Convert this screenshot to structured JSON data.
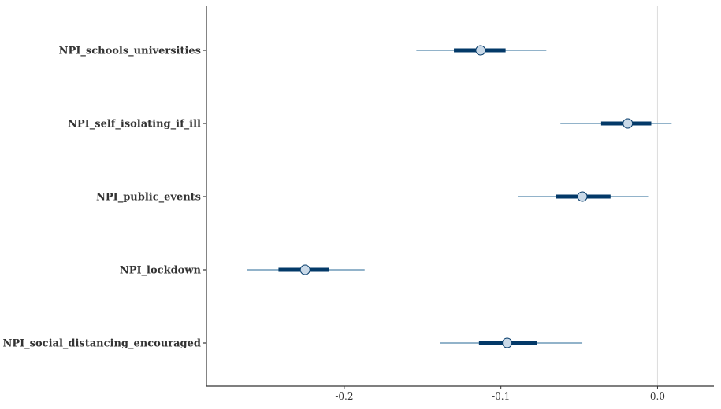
{
  "chart_data": {
    "type": "interval",
    "title": "",
    "xlabel": "",
    "ylabel": "",
    "xlim": [
      -0.288,
      0.036
    ],
    "x_ticks": [
      -0.2,
      -0.1,
      0.0
    ],
    "x_tick_labels": [
      "-0.2",
      "-0.1",
      "0.0"
    ],
    "reference_line": 0.0,
    "grid": false,
    "categories": [
      "NPI_schools_universities",
      "NPI_self_isolating_if_ill",
      "NPI_public_events",
      "NPI_lockdown",
      "NPI_social_distancing_encouraged"
    ],
    "points": [
      {
        "label": "NPI_schools_universities",
        "median": -0.113,
        "inner": [
          -0.13,
          -0.097
        ],
        "outer": [
          -0.154,
          -0.071
        ]
      },
      {
        "label": "NPI_self_isolating_if_ill",
        "median": -0.019,
        "inner": [
          -0.036,
          -0.004
        ],
        "outer": [
          -0.062,
          0.009
        ]
      },
      {
        "label": "NPI_public_events",
        "median": -0.048,
        "inner": [
          -0.065,
          -0.03
        ],
        "outer": [
          -0.089,
          -0.006
        ]
      },
      {
        "label": "NPI_lockdown",
        "median": -0.225,
        "inner": [
          -0.242,
          -0.21
        ],
        "outer": [
          -0.262,
          -0.187
        ]
      },
      {
        "label": "NPI_social_distancing_encouraged",
        "median": -0.096,
        "inner": [
          -0.114,
          -0.077
        ],
        "outer": [
          -0.139,
          -0.048
        ]
      }
    ],
    "colors": {
      "outer_line": "#6f9ab8",
      "inner_line": "#033968",
      "point_fill": "#c9d9e8",
      "point_stroke": "#033968",
      "reference_line": "#dcdcdc",
      "axis": "#333333"
    }
  }
}
